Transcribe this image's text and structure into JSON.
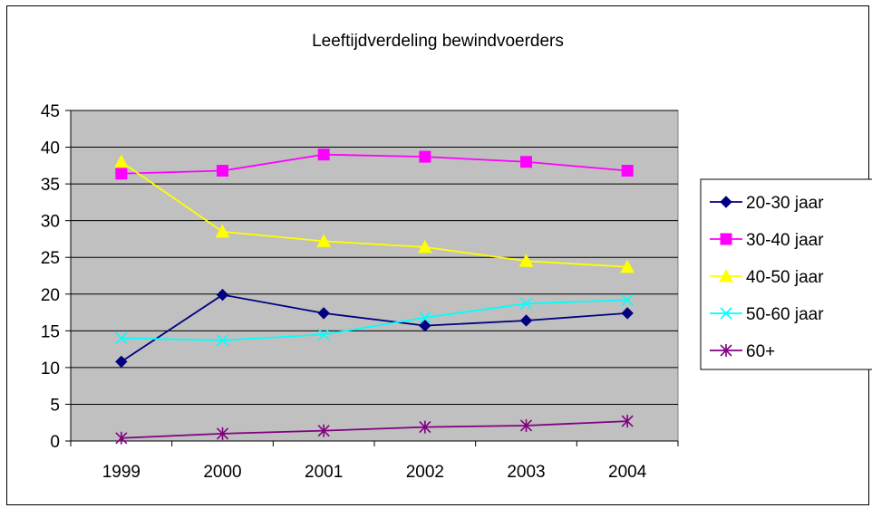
{
  "chart_data": {
    "type": "line",
    "title": "Leeftijdverdeling bewindvoerders",
    "categories": [
      "1999",
      "2000",
      "2001",
      "2002",
      "2003",
      "2004"
    ],
    "ylim": [
      0,
      45
    ],
    "yticks": [
      0,
      5,
      10,
      15,
      20,
      25,
      30,
      35,
      40,
      45
    ],
    "grid": true,
    "legend_position": "right",
    "plot_background": "#c0c0c0",
    "series": [
      {
        "name": "20-30 jaar",
        "color": "#000080",
        "marker": "diamond",
        "values": [
          10.8,
          19.9,
          17.4,
          15.7,
          16.4,
          17.4
        ]
      },
      {
        "name": "30-40 jaar",
        "color": "#ff00ff",
        "marker": "square",
        "values": [
          36.4,
          36.8,
          39.0,
          38.7,
          38.0,
          36.8
        ]
      },
      {
        "name": "40-50 jaar",
        "color": "#ffff00",
        "marker": "triangle",
        "values": [
          38.0,
          28.5,
          27.2,
          26.4,
          24.5,
          23.7
        ]
      },
      {
        "name": "50-60 jaar",
        "color": "#00ffff",
        "marker": "x",
        "values": [
          14.0,
          13.7,
          14.5,
          16.8,
          18.7,
          19.2
        ]
      },
      {
        "name": "60+",
        "color": "#800080",
        "marker": "star",
        "values": [
          0.4,
          1.0,
          1.4,
          1.9,
          2.1,
          2.7
        ]
      }
    ]
  }
}
